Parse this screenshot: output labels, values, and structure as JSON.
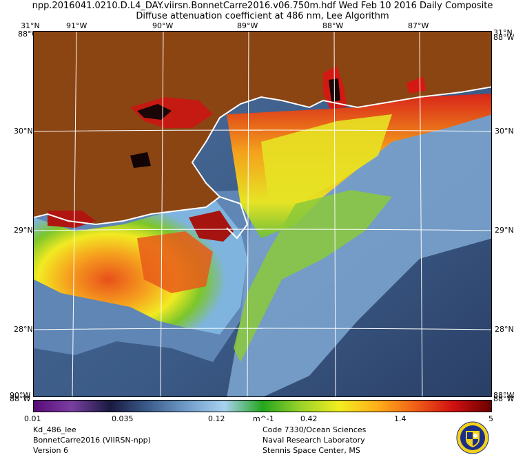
{
  "header": {
    "title_line1": "npp.2016041.0210.D.L4_DAY.viirsn.BonnetCarre2016.v06.750m.hdf    Wed Feb 10 2016 Daily Composite",
    "title_line2": "Diffuse attenuation coefficient at 486 nm, Lee Algorithm"
  },
  "map": {
    "lon_labels": [
      "91°W",
      "90°W",
      "89°W",
      "88°W",
      "87°W"
    ],
    "lat_labels": [
      "30°N",
      "29°N",
      "28°N"
    ],
    "corner_top_left_lat": "31°N",
    "corner_top_left_lon": "88°W",
    "corner_top_right_lat": "31°N",
    "corner_top_right_lon": "88°W",
    "corner_bottom_left_a": "90°W",
    "corner_bottom_left_b": "88°W",
    "corner_bottom_right_a": "88°W",
    "corner_bottom_right_b": "88°W",
    "colors": {
      "land": "#8B4513",
      "coast": "#ffffff",
      "grid": "#ffffff"
    }
  },
  "colorbar": {
    "tick_labels": [
      "0.01",
      "0.035",
      "0.12",
      "m^-1",
      "0.42",
      "1.4",
      "5"
    ],
    "stops": [
      "#5a0a78",
      "#7a3fa0",
      "#1a1a40",
      "#3c5d8c",
      "#6f9bc8",
      "#a9d2f0",
      "#23a61e",
      "#9ad22a",
      "#f0ee20",
      "#ffb01a",
      "#f06018",
      "#d01010",
      "#6a0000"
    ]
  },
  "footer": {
    "left_line1": "Kd_486_lee",
    "left_line2": "BonnetCarre2016 (VIIRSN-npp)",
    "left_line3": "Version 6",
    "right_line1": "Code 7330/Ocean Sciences",
    "right_line2": "Naval Research Laboratory",
    "right_line3": "Stennis Space Center, MS"
  }
}
